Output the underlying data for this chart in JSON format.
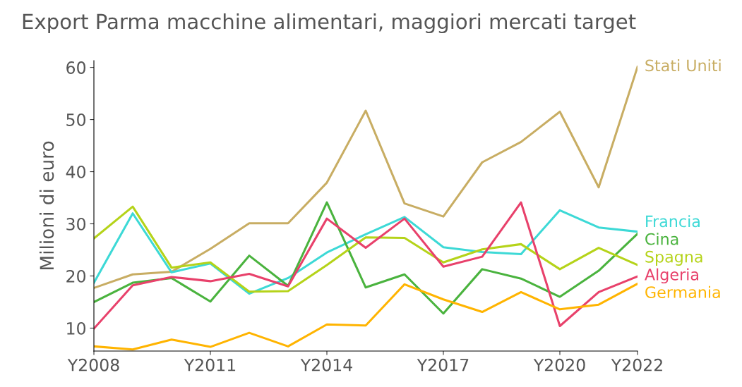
{
  "chart_data": {
    "type": "line",
    "title": "Export Parma macchine alimentari, maggiori mercati target",
    "ylabel": "Milioni di euro",
    "categories": [
      "Y2008",
      null,
      null,
      "Y2011",
      null,
      null,
      "Y2014",
      null,
      null,
      "Y2017",
      null,
      null,
      "Y2020",
      null,
      "Y2022"
    ],
    "ylim": [
      5.6,
      61.3
    ],
    "yticks": [
      10,
      20,
      30,
      40,
      50,
      60
    ],
    "grid": false,
    "series": [
      {
        "name": "Stati Uniti",
        "color": "#c8ad63",
        "values": [
          17.7,
          20.3,
          20.8,
          25.2,
          30.1,
          30.1,
          37.9,
          51.7,
          33.9,
          31.4,
          41.8,
          45.7,
          51.5,
          37.0,
          60.1
        ]
      },
      {
        "name": "Francia",
        "color": "#3dd9d6",
        "values": [
          18.7,
          32.0,
          20.7,
          22.4,
          16.6,
          19.6,
          24.5,
          28.0,
          31.3,
          25.5,
          24.6,
          24.2,
          32.6,
          29.3,
          28.5
        ]
      },
      {
        "name": "Cina",
        "color": "#4ab33e",
        "values": [
          15.0,
          18.7,
          19.6,
          15.1,
          23.9,
          18.1,
          34.1,
          17.8,
          20.3,
          12.8,
          21.3,
          19.5,
          16.0,
          21.0,
          28.1
        ]
      },
      {
        "name": "Spagna",
        "color": "#b5d319",
        "values": [
          27.2,
          33.3,
          21.6,
          22.6,
          17.0,
          17.1,
          22.1,
          27.4,
          27.3,
          22.6,
          25.1,
          26.1,
          21.3,
          25.4,
          22.1
        ]
      },
      {
        "name": "Algeria",
        "color": "#e8416b",
        "values": [
          9.9,
          18.2,
          19.8,
          19.0,
          20.4,
          18.0,
          31.0,
          25.4,
          31.0,
          21.8,
          23.7,
          34.1,
          10.4,
          16.9,
          19.9
        ]
      },
      {
        "name": "Germania",
        "color": "#ffb400",
        "values": [
          6.5,
          5.9,
          7.8,
          6.4,
          9.1,
          6.5,
          10.7,
          10.5,
          18.4,
          15.5,
          13.1,
          16.9,
          13.6,
          14.5,
          18.5
        ]
      }
    ]
  }
}
